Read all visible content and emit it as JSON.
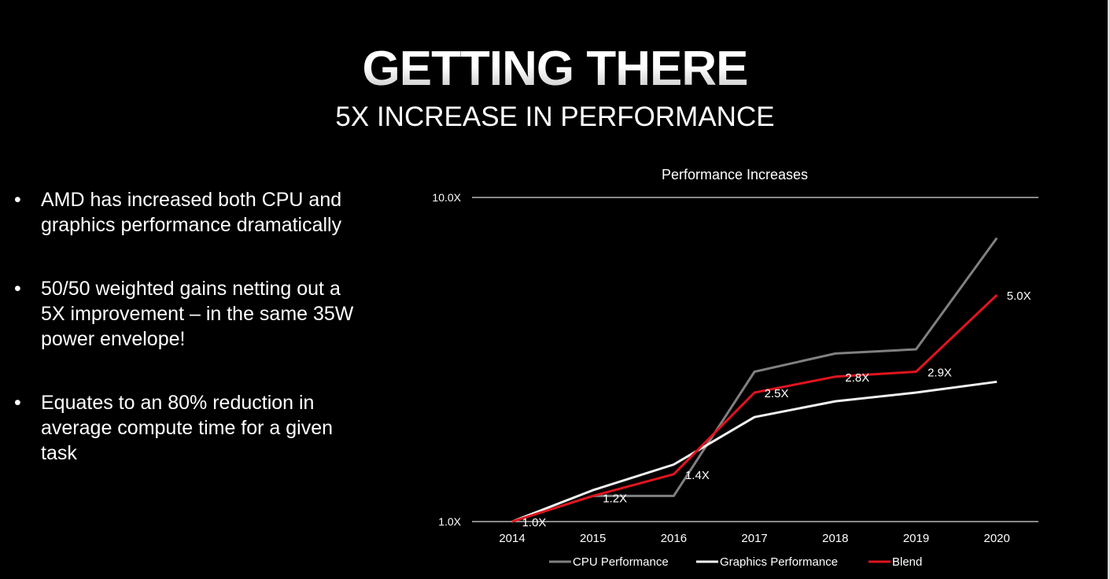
{
  "slide": {
    "title": "GETTING THERE",
    "subtitle": "5X INCREASE IN PERFORMANCE",
    "bullets": [
      "AMD has increased both CPU and graphics performance dramatically",
      "50/50 weighted gains netting out a 5X improvement – in the same 35W power envelope!",
      "Equates to an 80% reduction in average compute time for a given task"
    ],
    "bullet_glyph": "•"
  },
  "chart_data": {
    "type": "line",
    "title": "Performance Increases",
    "xlabel": "",
    "ylabel": "",
    "y_scale": "log",
    "ylim": [
      1.0,
      10.0
    ],
    "y_tick_labels": [
      "10.0X",
      "1.0X"
    ],
    "y_ticks": [
      10.0,
      1.0
    ],
    "categories": [
      "2014",
      "2015",
      "2016",
      "2017",
      "2018",
      "2019",
      "2020"
    ],
    "legend_position": "bottom",
    "series": [
      {
        "name": "CPU Performance",
        "color": "#808080",
        "values": [
          1.0,
          1.2,
          1.2,
          2.9,
          3.3,
          3.4,
          7.5
        ]
      },
      {
        "name": "Graphics Performance",
        "color": "#f2f2f2",
        "values": [
          1.0,
          1.25,
          1.5,
          2.1,
          2.35,
          2.5,
          2.7
        ]
      },
      {
        "name": "Blend",
        "color": "#e0141e",
        "values": [
          1.0,
          1.2,
          1.4,
          2.5,
          2.8,
          2.9,
          5.0
        ],
        "data_labels": [
          "1.0X",
          "1.2X",
          "1.4X",
          "2.5X",
          "2.8X",
          "2.9X",
          "5.0X"
        ]
      }
    ]
  }
}
